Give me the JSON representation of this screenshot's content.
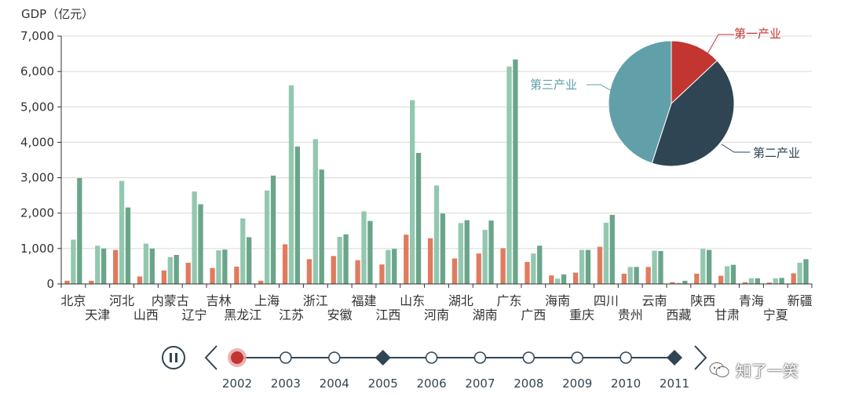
{
  "chart_data": {
    "type": "bar",
    "y_axis_title": "GDP（亿元）",
    "ylim": [
      0,
      7000
    ],
    "y_ticks": [
      "0",
      "1,000",
      "2,000",
      "3,000",
      "4,000",
      "5,000",
      "6,000",
      "7,000"
    ],
    "categories": [
      "北京",
      "天津",
      "河北",
      "山西",
      "内蒙古",
      "辽宁",
      "吉林",
      "黑龙江",
      "上海",
      "江苏",
      "浙江",
      "安徽",
      "福建",
      "江西",
      "山东",
      "河南",
      "湖北",
      "湖南",
      "广东",
      "广西",
      "海南",
      "重庆",
      "四川",
      "贵州",
      "云南",
      "西藏",
      "陕西",
      "甘肃",
      "青海",
      "宁夏",
      "新疆"
    ],
    "series": [
      {
        "name": "第一产业",
        "color": "#e07b5f",
        "values": [
          90,
          90,
          960,
          210,
          380,
          600,
          450,
          490,
          90,
          1120,
          700,
          790,
          670,
          550,
          1390,
          1290,
          720,
          860,
          1010,
          620,
          240,
          320,
          1050,
          290,
          480,
          50,
          290,
          230,
          50,
          40,
          300
        ]
      },
      {
        "name": "第二产业",
        "color": "#93c8b0",
        "values": [
          1250,
          1080,
          2910,
          1140,
          760,
          2610,
          950,
          1850,
          2640,
          5610,
          4090,
          1330,
          2050,
          960,
          5190,
          2780,
          1720,
          1530,
          6140,
          860,
          150,
          960,
          1730,
          480,
          940,
          30,
          990,
          500,
          160,
          160,
          600
        ]
      },
      {
        "name": "第三产业",
        "color": "#6aa58a",
        "values": [
          2990,
          1000,
          2160,
          1000,
          820,
          2250,
          970,
          1320,
          3060,
          3880,
          3230,
          1400,
          1780,
          990,
          3700,
          1990,
          1800,
          1790,
          6340,
          1080,
          270,
          960,
          1950,
          480,
          930,
          90,
          960,
          540,
          160,
          170,
          700
        ]
      }
    ],
    "pie": {
      "slices": [
        {
          "label": "第一产业",
          "value": 13,
          "color": "#c23531",
          "label_color": "#c23531"
        },
        {
          "label": "第二产业",
          "value": 42,
          "color": "#2f4554",
          "label_color": "#2f4554"
        },
        {
          "label": "第三产业",
          "value": 45,
          "color": "#61a0a8",
          "label_color": "#61a0a8"
        }
      ]
    }
  },
  "timeline": {
    "years": [
      "2002",
      "2003",
      "2004",
      "2005",
      "2006",
      "2007",
      "2008",
      "2009",
      "2010",
      "2011"
    ],
    "current_index": 0,
    "diamond_indices": [
      3,
      9
    ]
  },
  "watermark": {
    "text": "知了一笑"
  }
}
